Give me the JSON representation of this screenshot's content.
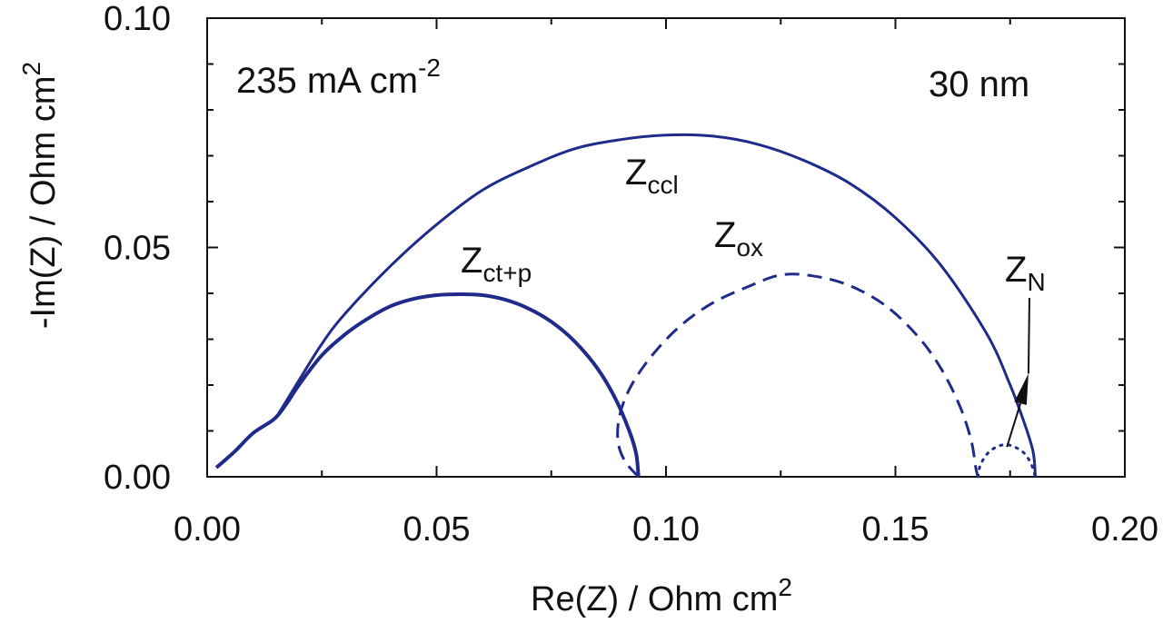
{
  "chart_data": {
    "type": "line",
    "xlabel": "Re(Z) / Ohm cm",
    "xlabel_sup": "2",
    "ylabel": "-Im(Z) / Ohm cm",
    "ylabel_sup": "2",
    "xlim": [
      0.0,
      0.2
    ],
    "ylim": [
      0.0,
      0.1
    ],
    "x_ticks": [
      0.0,
      0.05,
      0.1,
      0.15,
      0.2
    ],
    "x_tick_labels": [
      "0.00",
      "0.05",
      "0.10",
      "0.15",
      "0.20"
    ],
    "y_ticks": [
      0.0,
      0.05,
      0.1
    ],
    "y_tick_labels": [
      "0.00",
      "0.05",
      "0.10"
    ],
    "grid": false,
    "color": "#1f2a8a",
    "annotations": {
      "current": {
        "text": "235 mA cm",
        "sup": "-2"
      },
      "thickness": {
        "text": "30 nm"
      },
      "z_ccl": {
        "main": "Z",
        "sub": "ccl"
      },
      "z_ctp": {
        "main": "Z",
        "sub": "ct+p"
      },
      "z_ox": {
        "main": "Z",
        "sub": "ox"
      },
      "z_n": {
        "main": "Z",
        "sub": "N"
      }
    },
    "series": [
      {
        "style": "solid",
        "points": [
          [
            0.002,
            0.002
          ],
          [
            0.006,
            0.0055
          ],
          [
            0.01,
            0.0095
          ],
          [
            0.0145,
            0.0125
          ],
          [
            0.016,
            0.0145
          ],
          [
            0.02,
            0.021
          ],
          [
            0.025,
            0.029
          ],
          [
            0.03,
            0.0355
          ],
          [
            0.04,
            0.046
          ],
          [
            0.05,
            0.055
          ],
          [
            0.06,
            0.0625
          ],
          [
            0.07,
            0.0675
          ],
          [
            0.08,
            0.0715
          ],
          [
            0.09,
            0.0735
          ],
          [
            0.1,
            0.0745
          ],
          [
            0.11,
            0.0743
          ],
          [
            0.12,
            0.0725
          ],
          [
            0.13,
            0.069
          ],
          [
            0.14,
            0.064
          ],
          [
            0.15,
            0.0565
          ],
          [
            0.16,
            0.046
          ],
          [
            0.17,
            0.031
          ],
          [
            0.175,
            0.02
          ],
          [
            0.178,
            0.012
          ],
          [
            0.18,
            0.0055
          ],
          [
            0.1805,
            0.0
          ]
        ]
      },
      {
        "style": "solid",
        "points": [
          [
            0.002,
            0.002
          ],
          [
            0.006,
            0.0055
          ],
          [
            0.01,
            0.0095
          ],
          [
            0.0145,
            0.0125
          ],
          [
            0.017,
            0.0155
          ],
          [
            0.02,
            0.02
          ],
          [
            0.025,
            0.0265
          ],
          [
            0.03,
            0.031
          ],
          [
            0.035,
            0.0345
          ],
          [
            0.04,
            0.0372
          ],
          [
            0.045,
            0.0388
          ],
          [
            0.05,
            0.0396
          ],
          [
            0.055,
            0.0398
          ],
          [
            0.06,
            0.0396
          ],
          [
            0.065,
            0.0386
          ],
          [
            0.07,
            0.0367
          ],
          [
            0.075,
            0.0338
          ],
          [
            0.08,
            0.0296
          ],
          [
            0.085,
            0.0237
          ],
          [
            0.089,
            0.017
          ],
          [
            0.092,
            0.01
          ],
          [
            0.0935,
            0.005
          ],
          [
            0.094,
            0.0
          ]
        ]
      },
      {
        "style": "dashed",
        "points": [
          [
            0.094,
            0.0
          ],
          [
            0.091,
            0.0035
          ],
          [
            0.0895,
            0.008
          ],
          [
            0.09,
            0.0138
          ],
          [
            0.0925,
            0.02
          ],
          [
            0.097,
            0.0265
          ],
          [
            0.103,
            0.0328
          ],
          [
            0.11,
            0.0378
          ],
          [
            0.118,
            0.0415
          ],
          [
            0.125,
            0.044
          ],
          [
            0.132,
            0.0438
          ],
          [
            0.14,
            0.0417
          ],
          [
            0.148,
            0.0372
          ],
          [
            0.155,
            0.0305
          ],
          [
            0.16,
            0.0235
          ],
          [
            0.164,
            0.0155
          ],
          [
            0.1665,
            0.008
          ],
          [
            0.1675,
            0.002
          ],
          [
            0.168,
            0.0
          ]
        ]
      },
      {
        "style": "dotted",
        "points": [
          [
            0.168,
            0.0
          ],
          [
            0.1685,
            0.0025
          ],
          [
            0.17,
            0.005
          ],
          [
            0.172,
            0.0065
          ],
          [
            0.174,
            0.007
          ],
          [
            0.176,
            0.0065
          ],
          [
            0.178,
            0.0052
          ],
          [
            0.1795,
            0.003
          ],
          [
            0.1805,
            0.0
          ]
        ]
      }
    ],
    "arrow": {
      "from": [
        0.1755,
        0.0095
      ],
      "to": [
        0.179,
        0.0225
      ]
    }
  }
}
